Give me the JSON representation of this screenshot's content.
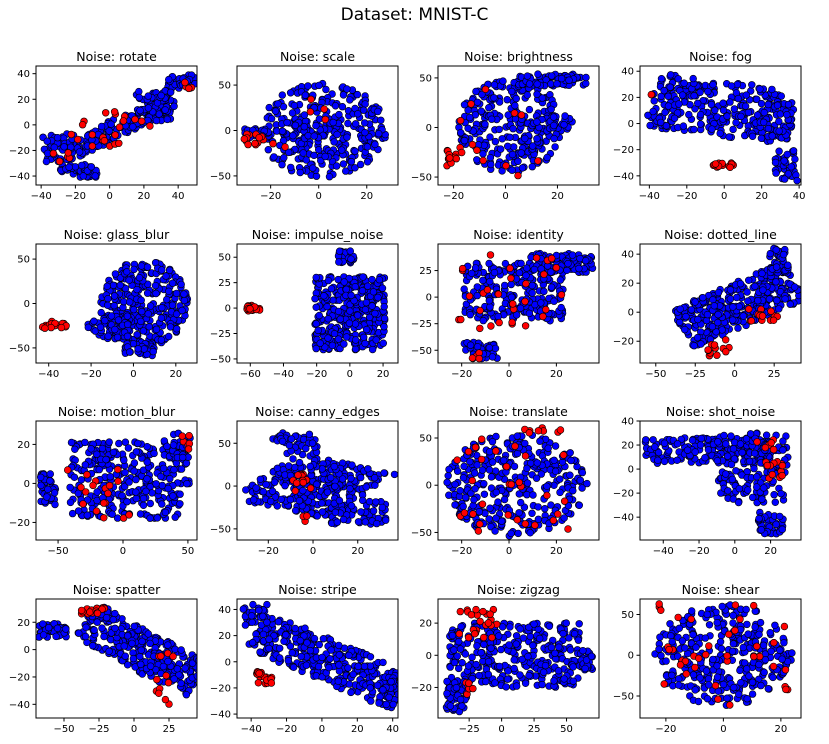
{
  "figure": {
    "suptitle": "Dataset: MNIST-C",
    "colors": {
      "majority": "#0000ff",
      "minority": "#ff0000",
      "edge": "#000000",
      "axes": "#000000",
      "background": "#ffffff"
    }
  },
  "chart_data": [
    {
      "type": "scatter",
      "title": "Noise: rotate",
      "xlim": [
        -43,
        51
      ],
      "ylim": [
        -47,
        46
      ],
      "xticks": [
        -40,
        -20,
        0,
        20,
        40
      ],
      "yticks": [
        -40,
        -20,
        0,
        20,
        40
      ],
      "grid": false,
      "clusters": [
        {
          "cls": "blue",
          "n": 150,
          "kind": "box",
          "cx": 8,
          "cy": 0,
          "w": 70,
          "h": 14,
          "rot": 33
        },
        {
          "cls": "blue",
          "n": 45,
          "kind": "box",
          "cx": -30,
          "cy": -18,
          "w": 18,
          "h": 22,
          "rot": 0
        },
        {
          "cls": "blue",
          "n": 40,
          "kind": "box",
          "cx": -18,
          "cy": -36,
          "w": 22,
          "h": 10,
          "rot": 0
        },
        {
          "cls": "blue",
          "n": 35,
          "kind": "box",
          "cx": 42,
          "cy": 33,
          "w": 16,
          "h": 12,
          "rot": 0
        },
        {
          "cls": "blue",
          "n": 55,
          "kind": "box",
          "cx": 25,
          "cy": 15,
          "w": 22,
          "h": 24,
          "rot": 0
        },
        {
          "cls": "red",
          "n": 22,
          "kind": "box",
          "cx": 0,
          "cy": -6,
          "w": 50,
          "h": 30,
          "rot": 25
        },
        {
          "cls": "red",
          "n": 5,
          "kind": "box",
          "cx": 45,
          "cy": 32,
          "w": 8,
          "h": 8,
          "rot": 0
        },
        {
          "cls": "red",
          "n": 5,
          "kind": "box",
          "cx": -28,
          "cy": -25,
          "w": 10,
          "h": 8,
          "rot": 0
        }
      ]
    },
    {
      "type": "scatter",
      "title": "Noise: scale",
      "xlim": [
        -34,
        33
      ],
      "ylim": [
        -60,
        71
      ],
      "xticks": [
        -20,
        0,
        20
      ],
      "yticks": [
        -50,
        0,
        50
      ],
      "grid": false,
      "clusters": [
        {
          "cls": "blue",
          "n": 320,
          "kind": "ellipse",
          "cx": 2,
          "cy": 0,
          "rx": 26,
          "ry": 52,
          "rot": 0
        },
        {
          "cls": "blue",
          "n": 20,
          "kind": "box",
          "cx": -25,
          "cy": -3,
          "w": 12,
          "h": 10,
          "rot": 0
        },
        {
          "cls": "red",
          "n": 14,
          "kind": "box",
          "cx": -25,
          "cy": -10,
          "w": 12,
          "h": 12,
          "rot": 0
        },
        {
          "cls": "red",
          "n": 5,
          "kind": "box",
          "cx": 5,
          "cy": 10,
          "w": 40,
          "h": 60,
          "rot": 0
        }
      ]
    },
    {
      "type": "scatter",
      "title": "Noise: brightness",
      "xlim": [
        -26,
        36
      ],
      "ylim": [
        -58,
        62
      ],
      "xticks": [
        -20,
        0,
        20
      ],
      "yticks": [
        -50,
        0,
        50
      ],
      "grid": false,
      "clusters": [
        {
          "cls": "blue",
          "n": 260,
          "kind": "ellipse",
          "cx": 2,
          "cy": 2,
          "rx": 20,
          "ry": 48,
          "rot": 0
        },
        {
          "cls": "blue",
          "n": 70,
          "kind": "box",
          "cx": 18,
          "cy": 48,
          "w": 26,
          "h": 12,
          "rot": 0
        },
        {
          "cls": "blue",
          "n": 25,
          "kind": "box",
          "cx": 18,
          "cy": 5,
          "w": 16,
          "h": 14,
          "rot": 0
        },
        {
          "cls": "red",
          "n": 12,
          "kind": "box",
          "cx": -20,
          "cy": -30,
          "w": 6,
          "h": 20,
          "rot": 0
        },
        {
          "cls": "red",
          "n": 12,
          "kind": "box",
          "cx": 0,
          "cy": 0,
          "w": 36,
          "h": 100,
          "rot": 0
        }
      ]
    },
    {
      "type": "scatter",
      "title": "Noise: fog",
      "xlim": [
        -45,
        41
      ],
      "ylim": [
        -47,
        44
      ],
      "xticks": [
        -40,
        -20,
        0,
        20,
        40
      ],
      "yticks": [
        -40,
        -20,
        0,
        20,
        40
      ],
      "grid": false,
      "clusters": [
        {
          "cls": "blue",
          "n": 260,
          "kind": "box",
          "cx": -5,
          "cy": 12,
          "w": 70,
          "h": 42,
          "rot": -10
        },
        {
          "cls": "blue",
          "n": 60,
          "kind": "box",
          "cx": 28,
          "cy": 2,
          "w": 18,
          "h": 28,
          "rot": 0
        },
        {
          "cls": "blue",
          "n": 35,
          "kind": "box",
          "cx": 33,
          "cy": -32,
          "w": 12,
          "h": 24,
          "rot": 0
        },
        {
          "cls": "red",
          "n": 14,
          "kind": "box",
          "cx": 0,
          "cy": -32,
          "w": 12,
          "h": 4,
          "rot": 0
        },
        {
          "cls": "red",
          "n": 2,
          "kind": "box",
          "cx": -40,
          "cy": 24,
          "w": 4,
          "h": 4,
          "rot": 0
        }
      ]
    },
    {
      "type": "scatter",
      "title": "Noise: glass_blur",
      "xlim": [
        -46,
        30
      ],
      "ylim": [
        -67,
        67
      ],
      "xticks": [
        -40,
        -20,
        0,
        20
      ],
      "yticks": [
        -50,
        0,
        50
      ],
      "grid": false,
      "clusters": [
        {
          "cls": "blue",
          "n": 300,
          "kind": "ellipse",
          "cx": 5,
          "cy": 0,
          "rx": 21,
          "ry": 48,
          "rot": 0
        },
        {
          "cls": "blue",
          "n": 55,
          "kind": "box",
          "cx": -12,
          "cy": -25,
          "w": 20,
          "h": 30,
          "rot": 0
        },
        {
          "cls": "blue",
          "n": 30,
          "kind": "box",
          "cx": 3,
          "cy": -52,
          "w": 14,
          "h": 14,
          "rot": 0
        },
        {
          "cls": "red",
          "n": 20,
          "kind": "box",
          "cx": -37,
          "cy": -24,
          "w": 14,
          "h": 8,
          "rot": 0
        }
      ]
    },
    {
      "type": "scatter",
      "title": "Noise: impulse_noise",
      "xlim": [
        -68,
        29
      ],
      "ylim": [
        -54,
        63
      ],
      "xticks": [
        -60,
        -40,
        -20,
        0,
        20
      ],
      "yticks": [
        -50,
        -25,
        0,
        25,
        50
      ],
      "grid": false,
      "clusters": [
        {
          "cls": "blue",
          "n": 330,
          "kind": "box",
          "cx": 0,
          "cy": -5,
          "w": 42,
          "h": 72,
          "rot": 0
        },
        {
          "cls": "blue",
          "n": 30,
          "kind": "box",
          "cx": -2,
          "cy": 50,
          "w": 10,
          "h": 12,
          "rot": 0
        },
        {
          "cls": "red",
          "n": 22,
          "kind": "box",
          "cx": -58,
          "cy": 0,
          "w": 8,
          "h": 6,
          "rot": 0
        }
      ]
    },
    {
      "type": "scatter",
      "title": "Noise: identity",
      "xlim": [
        -30,
        38
      ],
      "ylim": [
        -62,
        50
      ],
      "xticks": [
        -20,
        0,
        20
      ],
      "yticks": [
        -50,
        -25,
        0,
        25
      ],
      "grid": false,
      "clusters": [
        {
          "cls": "blue",
          "n": 230,
          "kind": "box",
          "cx": 2,
          "cy": 5,
          "w": 42,
          "h": 55,
          "rot": 0
        },
        {
          "cls": "blue",
          "n": 90,
          "kind": "box",
          "cx": 22,
          "cy": 32,
          "w": 28,
          "h": 18,
          "rot": 0
        },
        {
          "cls": "blue",
          "n": 40,
          "kind": "box",
          "cx": -12,
          "cy": -50,
          "w": 14,
          "h": 16,
          "rot": 0
        },
        {
          "cls": "red",
          "n": 30,
          "kind": "box",
          "cx": 2,
          "cy": 5,
          "w": 50,
          "h": 70,
          "rot": 0
        },
        {
          "cls": "red",
          "n": 4,
          "kind": "box",
          "cx": -15,
          "cy": -55,
          "w": 6,
          "h": 6,
          "rot": 0
        }
      ]
    },
    {
      "type": "scatter",
      "title": "Noise: dotted_line",
      "xlim": [
        -60,
        42
      ],
      "ylim": [
        -35,
        47
      ],
      "xticks": [
        -50,
        -25,
        0,
        25
      ],
      "yticks": [
        -20,
        0,
        20,
        40
      ],
      "grid": false,
      "clusters": [
        {
          "cls": "blue",
          "n": 320,
          "kind": "box",
          "cx": 3,
          "cy": 5,
          "w": 80,
          "h": 30,
          "rot": 25
        },
        {
          "cls": "blue",
          "n": 40,
          "kind": "box",
          "cx": 28,
          "cy": 35,
          "w": 12,
          "h": 18,
          "rot": 0
        },
        {
          "cls": "red",
          "n": 12,
          "kind": "box",
          "cx": -10,
          "cy": -25,
          "w": 14,
          "h": 12,
          "rot": 0
        },
        {
          "cls": "red",
          "n": 14,
          "kind": "box",
          "cx": 18,
          "cy": -2,
          "w": 20,
          "h": 10,
          "rot": 0
        }
      ]
    },
    {
      "type": "scatter",
      "title": "Noise: motion_blur",
      "xlim": [
        -67,
        57
      ],
      "ylim": [
        -29,
        32
      ],
      "xticks": [
        -50,
        0,
        50
      ],
      "yticks": [
        -20,
        0,
        20
      ],
      "grid": false,
      "clusters": [
        {
          "cls": "blue",
          "n": 300,
          "kind": "box",
          "cx": 5,
          "cy": 2,
          "w": 92,
          "h": 40,
          "rot": 0
        },
        {
          "cls": "blue",
          "n": 35,
          "kind": "box",
          "cx": -58,
          "cy": -3,
          "w": 12,
          "h": 16,
          "rot": 0
        },
        {
          "cls": "blue",
          "n": 25,
          "kind": "box",
          "cx": 45,
          "cy": 18,
          "w": 14,
          "h": 16,
          "rot": 0
        },
        {
          "cls": "red",
          "n": 18,
          "kind": "box",
          "cx": -18,
          "cy": -5,
          "w": 50,
          "h": 30,
          "rot": 0
        },
        {
          "cls": "red",
          "n": 6,
          "kind": "box",
          "cx": 48,
          "cy": 20,
          "w": 8,
          "h": 12,
          "rot": 0
        }
      ]
    },
    {
      "type": "scatter",
      "title": "Noise: canny_edges",
      "xlim": [
        -34,
        38
      ],
      "ylim": [
        -63,
        76
      ],
      "xticks": [
        -20,
        0,
        20
      ],
      "yticks": [
        -50,
        0,
        50
      ],
      "grid": false,
      "clusters": [
        {
          "cls": "blue",
          "n": 280,
          "kind": "box",
          "cx": 0,
          "cy": 0,
          "w": 50,
          "h": 60,
          "rot": -30
        },
        {
          "cls": "blue",
          "n": 60,
          "kind": "box",
          "cx": 20,
          "cy": -30,
          "w": 26,
          "h": 30,
          "rot": 0
        },
        {
          "cls": "blue",
          "n": 45,
          "kind": "box",
          "cx": -8,
          "cy": 50,
          "w": 20,
          "h": 24,
          "rot": 0
        },
        {
          "cls": "red",
          "n": 12,
          "kind": "box",
          "cx": -5,
          "cy": 4,
          "w": 8,
          "h": 20,
          "rot": 0
        },
        {
          "cls": "red",
          "n": 4,
          "kind": "box",
          "cx": -3,
          "cy": -38,
          "w": 4,
          "h": 8,
          "rot": 0
        }
      ]
    },
    {
      "type": "scatter",
      "title": "Noise: translate",
      "xlim": [
        -30,
        38
      ],
      "ylim": [
        -58,
        68
      ],
      "xticks": [
        -20,
        0,
        20
      ],
      "yticks": [
        -50,
        0,
        50
      ],
      "grid": false,
      "clusters": [
        {
          "cls": "blue",
          "n": 340,
          "kind": "ellipse",
          "cx": 3,
          "cy": 0,
          "rx": 30,
          "ry": 55,
          "rot": 0
        },
        {
          "cls": "red",
          "n": 30,
          "kind": "box",
          "cx": 3,
          "cy": 0,
          "w": 50,
          "h": 100,
          "rot": 0
        },
        {
          "cls": "red",
          "n": 8,
          "kind": "box",
          "cx": 12,
          "cy": 58,
          "w": 20,
          "h": 6,
          "rot": 0
        }
      ]
    },
    {
      "type": "scatter",
      "title": "Noise: shot_noise",
      "xlim": [
        -53,
        37
      ],
      "ylim": [
        -59,
        40
      ],
      "xticks": [
        -40,
        -20,
        0,
        20
      ],
      "yticks": [
        -40,
        -20,
        0,
        20,
        40
      ],
      "grid": false,
      "clusters": [
        {
          "cls": "blue",
          "n": 170,
          "kind": "box",
          "cx": -15,
          "cy": 15,
          "w": 70,
          "h": 22,
          "rot": 0
        },
        {
          "cls": "blue",
          "n": 150,
          "kind": "box",
          "cx": 10,
          "cy": 0,
          "w": 40,
          "h": 60,
          "rot": 0
        },
        {
          "cls": "blue",
          "n": 40,
          "kind": "box",
          "cx": 20,
          "cy": -45,
          "w": 14,
          "h": 18,
          "rot": 0
        },
        {
          "cls": "red",
          "n": 12,
          "kind": "box",
          "cx": 22,
          "cy": 0,
          "w": 10,
          "h": 16,
          "rot": 0
        },
        {
          "cls": "red",
          "n": 6,
          "kind": "box",
          "cx": 18,
          "cy": 20,
          "w": 12,
          "h": 10,
          "rot": 0
        }
      ]
    },
    {
      "type": "scatter",
      "title": "Noise: spatter",
      "xlim": [
        -70,
        45
      ],
      "ylim": [
        -50,
        37
      ],
      "xticks": [
        -50,
        -25,
        0,
        25
      ],
      "yticks": [
        -40,
        -20,
        0,
        20
      ],
      "grid": false,
      "clusters": [
        {
          "cls": "blue",
          "n": 290,
          "kind": "box",
          "cx": 5,
          "cy": 0,
          "w": 90,
          "h": 30,
          "rot": -30
        },
        {
          "cls": "blue",
          "n": 45,
          "kind": "box",
          "cx": -58,
          "cy": 14,
          "w": 20,
          "h": 10,
          "rot": 0
        },
        {
          "cls": "red",
          "n": 16,
          "kind": "box",
          "cx": -30,
          "cy": 28,
          "w": 18,
          "h": 6,
          "rot": 0
        },
        {
          "cls": "red",
          "n": 12,
          "kind": "box",
          "cx": 22,
          "cy": -20,
          "w": 16,
          "h": 40,
          "rot": 0
        }
      ]
    },
    {
      "type": "scatter",
      "title": "Noise: stripe",
      "xlim": [
        -48,
        43
      ],
      "ylim": [
        -43,
        48
      ],
      "xticks": [
        -40,
        -20,
        0,
        20,
        40
      ],
      "yticks": [
        -40,
        -20,
        0,
        20,
        40
      ],
      "grid": false,
      "clusters": [
        {
          "cls": "blue",
          "n": 330,
          "kind": "box",
          "cx": 5,
          "cy": 0,
          "w": 95,
          "h": 30,
          "rot": -30
        },
        {
          "cls": "blue",
          "n": 35,
          "kind": "box",
          "cx": -38,
          "cy": 36,
          "w": 14,
          "h": 16,
          "rot": 0
        },
        {
          "cls": "red",
          "n": 22,
          "kind": "box",
          "cx": -32,
          "cy": -12,
          "w": 12,
          "h": 10,
          "rot": 0
        }
      ]
    },
    {
      "type": "scatter",
      "title": "Noise: zigzag",
      "xlim": [
        -49,
        75
      ],
      "ylim": [
        -39,
        35
      ],
      "xticks": [
        -25,
        0,
        25,
        50
      ],
      "yticks": [
        -20,
        0,
        20
      ],
      "grid": false,
      "clusters": [
        {
          "cls": "blue",
          "n": 310,
          "kind": "box",
          "cx": 10,
          "cy": 0,
          "w": 100,
          "h": 40,
          "rot": 0
        },
        {
          "cls": "blue",
          "n": 45,
          "kind": "box",
          "cx": -35,
          "cy": -25,
          "w": 16,
          "h": 20,
          "rot": 0
        },
        {
          "cls": "blue",
          "n": 25,
          "kind": "box",
          "cx": 65,
          "cy": -3,
          "w": 10,
          "h": 12,
          "rot": 0
        },
        {
          "cls": "red",
          "n": 24,
          "kind": "box",
          "cx": -18,
          "cy": 20,
          "w": 30,
          "h": 18,
          "rot": 0
        },
        {
          "cls": "red",
          "n": 6,
          "kind": "box",
          "cx": -25,
          "cy": -22,
          "w": 6,
          "h": 10,
          "rot": 0
        }
      ]
    },
    {
      "type": "scatter",
      "title": "Noise: shear",
      "xlim": [
        -29,
        27
      ],
      "ylim": [
        -77,
        69
      ],
      "xticks": [
        -20,
        0,
        20
      ],
      "yticks": [
        -50,
        0,
        50
      ],
      "grid": false,
      "clusters": [
        {
          "cls": "blue",
          "n": 340,
          "kind": "ellipse",
          "cx": 0,
          "cy": 0,
          "rx": 24,
          "ry": 62,
          "rot": 0
        },
        {
          "cls": "red",
          "n": 38,
          "kind": "box",
          "cx": 0,
          "cy": 0,
          "w": 46,
          "h": 130,
          "rot": 0
        }
      ]
    }
  ]
}
